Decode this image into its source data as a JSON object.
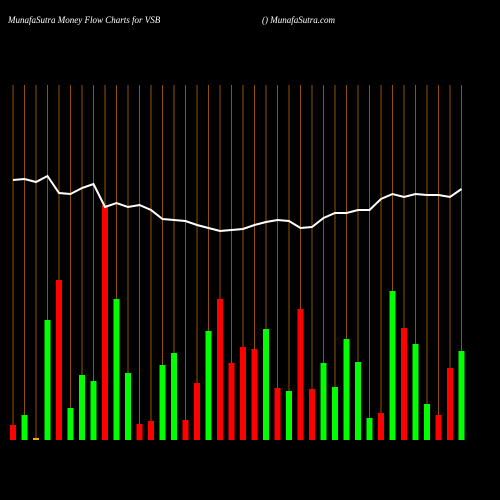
{
  "chart_data": {
    "type": "bar",
    "title": "MunafaSutra  Money Flow  Charts for VSB",
    "subtitle": "() MunafaSutra.com",
    "categories": [
      null,
      null,
      null,
      null,
      null,
      null,
      null,
      null,
      null,
      null,
      null,
      null,
      null,
      null,
      null,
      null,
      null,
      null,
      null,
      null,
      null,
      null,
      null,
      null,
      null,
      null,
      null,
      null,
      null,
      null,
      null,
      null,
      null,
      null,
      null,
      null,
      null,
      null,
      null,
      null
    ],
    "series": [
      {
        "type": "bar",
        "colors": [
          "red",
          "lime",
          "orange",
          "lime",
          "red",
          "lime",
          "lime",
          "lime",
          "red",
          "lime",
          "lime",
          "red",
          "red",
          "lime",
          "lime",
          "red",
          "red",
          "lime",
          "red",
          "red",
          "red",
          "red",
          "lime",
          "red",
          "lime",
          "red",
          "red",
          "lime",
          "lime",
          "lime",
          "lime",
          "lime",
          "red",
          "lime",
          "red",
          "lime",
          "lime",
          "red",
          "red",
          "lime"
        ],
        "values": [
          15,
          25,
          2,
          120,
          160,
          32,
          65,
          59,
          235,
          141,
          67,
          16,
          19,
          75,
          87,
          20,
          57,
          109,
          141,
          77,
          93,
          91,
          111,
          52,
          49,
          131,
          51,
          77,
          53,
          101,
          78,
          22,
          27,
          149,
          112,
          96,
          36,
          25,
          72,
          89
        ]
      },
      {
        "type": "line",
        "color": "white",
        "axis": "y2",
        "values": [
          320,
          321,
          318,
          324,
          307,
          306,
          312,
          316,
          293,
          297,
          293,
          295,
          290,
          281,
          280,
          279,
          275,
          272,
          269,
          270,
          271,
          275,
          278,
          280,
          279,
          272,
          273,
          282,
          287,
          287,
          290,
          290,
          301,
          306,
          303,
          306,
          305,
          305,
          303,
          311
        ]
      }
    ],
    "ylim": [
      0,
      440
    ],
    "y2lim": [
      0,
      500
    ],
    "grid_color": "#b8650a"
  }
}
